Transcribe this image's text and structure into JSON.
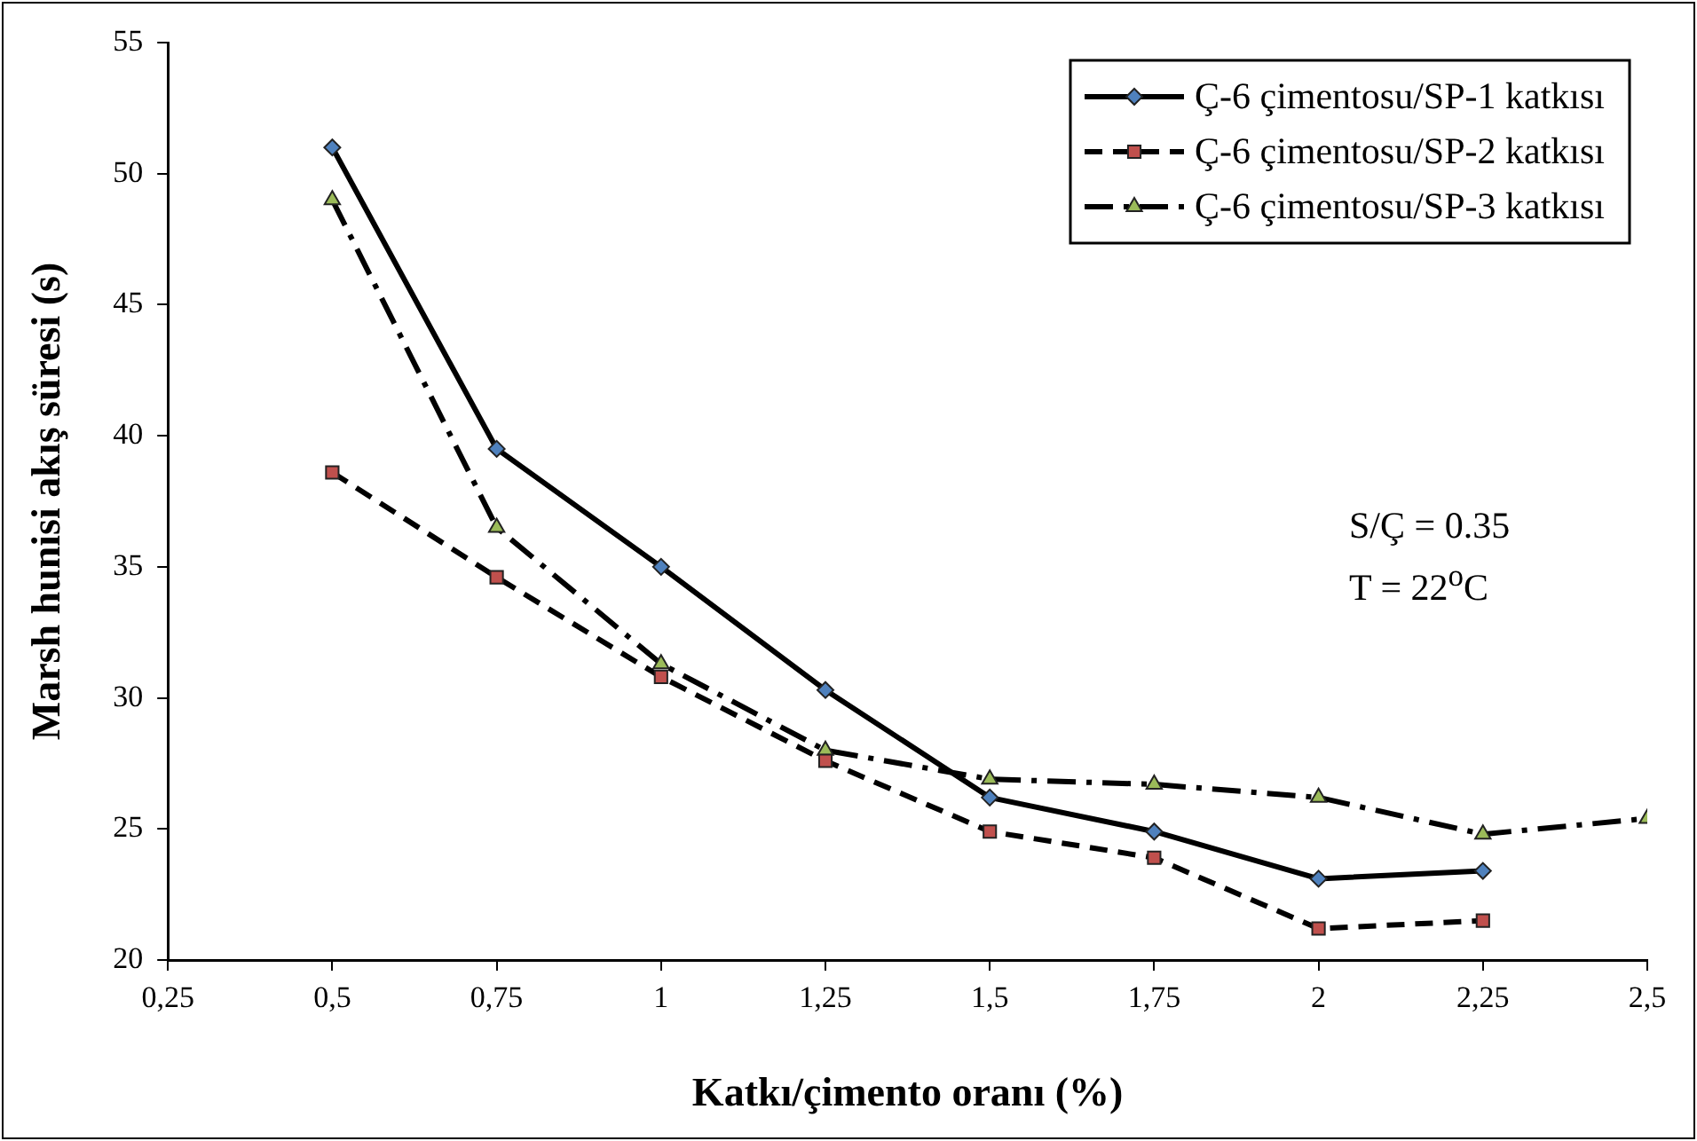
{
  "chart_data": {
    "type": "line",
    "xlabel": "Katkı/çimento oranı (%)",
    "ylabel": "Marsh hunisi akış süresi (s)",
    "x": [
      0.5,
      0.75,
      1,
      1.25,
      1.5,
      1.75,
      2,
      2.25,
      2.5
    ],
    "xlim": [
      0.25,
      2.5
    ],
    "xticks": [
      {
        "value": 0.25,
        "label": "0,25"
      },
      {
        "value": 0.5,
        "label": "0,5"
      },
      {
        "value": 0.75,
        "label": "0,75"
      },
      1,
      {
        "value": 1.25,
        "label": "1,25"
      },
      {
        "value": 1.5,
        "label": "1,5"
      },
      {
        "value": 1.75,
        "label": "1,75"
      },
      2,
      {
        "value": 2.25,
        "label": "2,25"
      },
      {
        "value": 2.5,
        "label": "2,5"
      }
    ],
    "ylim": [
      20,
      55
    ],
    "yticks": [
      20,
      25,
      30,
      35,
      40,
      45,
      50,
      55
    ],
    "grid": false,
    "legend": "top right",
    "series": [
      {
        "name": "Ç-6 çimentosu/SP-1 katkısı",
        "color": "#4f81bd",
        "marker": "diamond",
        "line_style": "solid",
        "values": [
          51,
          39.5,
          35,
          30.3,
          26.2,
          24.9,
          23.1,
          23.4,
          null
        ]
      },
      {
        "name": "Ç-6 çimentosu/SP-2 katkısı",
        "color": "#c0504d",
        "marker": "square",
        "line_style": "dashed",
        "values": [
          38.6,
          34.6,
          30.8,
          27.6,
          24.9,
          23.9,
          21.2,
          21.5,
          null
        ]
      },
      {
        "name": "Ç-6 çimentosu/SP-3 katkısı",
        "color": "#9bbb59",
        "marker": "triangle",
        "line_style": "dashdot",
        "values": [
          49,
          36.5,
          31.3,
          28,
          26.9,
          26.7,
          26.2,
          24.8,
          25.4
        ]
      }
    ],
    "annotations": [
      "S/Ç = 0.35",
      "T = 22$^{o}$C"
    ]
  }
}
